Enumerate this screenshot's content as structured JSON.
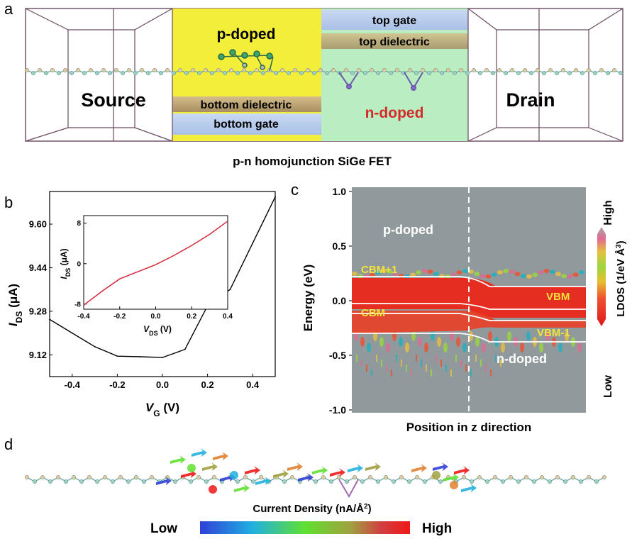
{
  "panel_a": {
    "label": "a",
    "source": "Source",
    "drain": "Drain",
    "p_doped": "p-doped",
    "n_doped": "n-doped",
    "top_gate": "top gate",
    "top_dielectric": "top dielectric",
    "bottom_dielectric": "bottom dielectric",
    "bottom_gate": "bottom gate",
    "caption": "p-n homojunction SiGe FET",
    "colors": {
      "p_region": "#f2ee3a",
      "n_region": "#b8eec2",
      "gate": "#b9cdea",
      "dielectric": "#bfa878"
    }
  },
  "panel_b": {
    "label": "b",
    "inset_x_label": "V",
    "inset_x_sub": "DS",
    "inset_x_unit": " (V)",
    "inset_y_label": "I",
    "inset_y_sub": "DS",
    "inset_y_unit": " (μA)"
  },
  "panel_c": {
    "label": "c",
    "ylabel": "Energy (eV)",
    "xlabel": "Position in z direction",
    "p_doped": "p-doped",
    "n_doped": "n-doped",
    "cbm1": "CBM+1",
    "cbm": "CBM",
    "vbm": "VBM",
    "vbm1": "VBM-1",
    "yticks": [
      "1.0",
      "0.5",
      "0.0",
      "-0.5",
      "-1.0"
    ],
    "colorbar_label": "LDOS (1/eV Å",
    "colorbar_sup": "3",
    "colorbar_close": ")",
    "high": "High",
    "low": "Low"
  },
  "panel_d": {
    "label": "d",
    "colorbar_title": "Current Density (nA/Å",
    "colorbar_sup": "2",
    "colorbar_close": ")",
    "low": "Low",
    "high": "High"
  },
  "chart_data": [
    {
      "type": "line",
      "xlabel": "VG (V)",
      "ylabel": "IDS (μA)",
      "xlim": [
        -0.5,
        0.5
      ],
      "ylim": [
        9.04,
        9.72
      ],
      "xticks": [
        "-0.4",
        "-0.2",
        "0.0",
        "0.2",
        "0.4"
      ],
      "yticks": [
        "9.12",
        "9.28",
        "9.44",
        "9.60"
      ],
      "series": [
        {
          "x": [
            -0.5,
            -0.4,
            -0.3,
            -0.2,
            -0.1,
            0.0,
            0.1,
            0.2,
            0.3,
            0.4,
            0.5
          ],
          "values": [
            9.25,
            9.2,
            9.15,
            9.115,
            9.113,
            9.11,
            9.14,
            9.3,
            9.36,
            9.53,
            9.7
          ]
        }
      ]
    },
    {
      "type": "line",
      "xlabel": "VDS (V)",
      "ylabel": "IDS (μA)",
      "xlim": [
        -0.4,
        0.4
      ],
      "ylim": [
        -9,
        9.5
      ],
      "xticks": [
        "-0.4",
        "-0.2",
        "0.0",
        "0.2",
        "0.4"
      ],
      "yticks": [
        "-8",
        "0",
        "8"
      ],
      "series": [
        {
          "x": [
            -0.4,
            -0.3,
            -0.2,
            -0.1,
            0.0,
            0.1,
            0.2,
            0.3,
            0.4
          ],
          "values": [
            -8.2,
            -5.5,
            -3.0,
            -1.6,
            -0.2,
            1.6,
            3.6,
            5.8,
            8.4
          ]
        }
      ]
    }
  ]
}
